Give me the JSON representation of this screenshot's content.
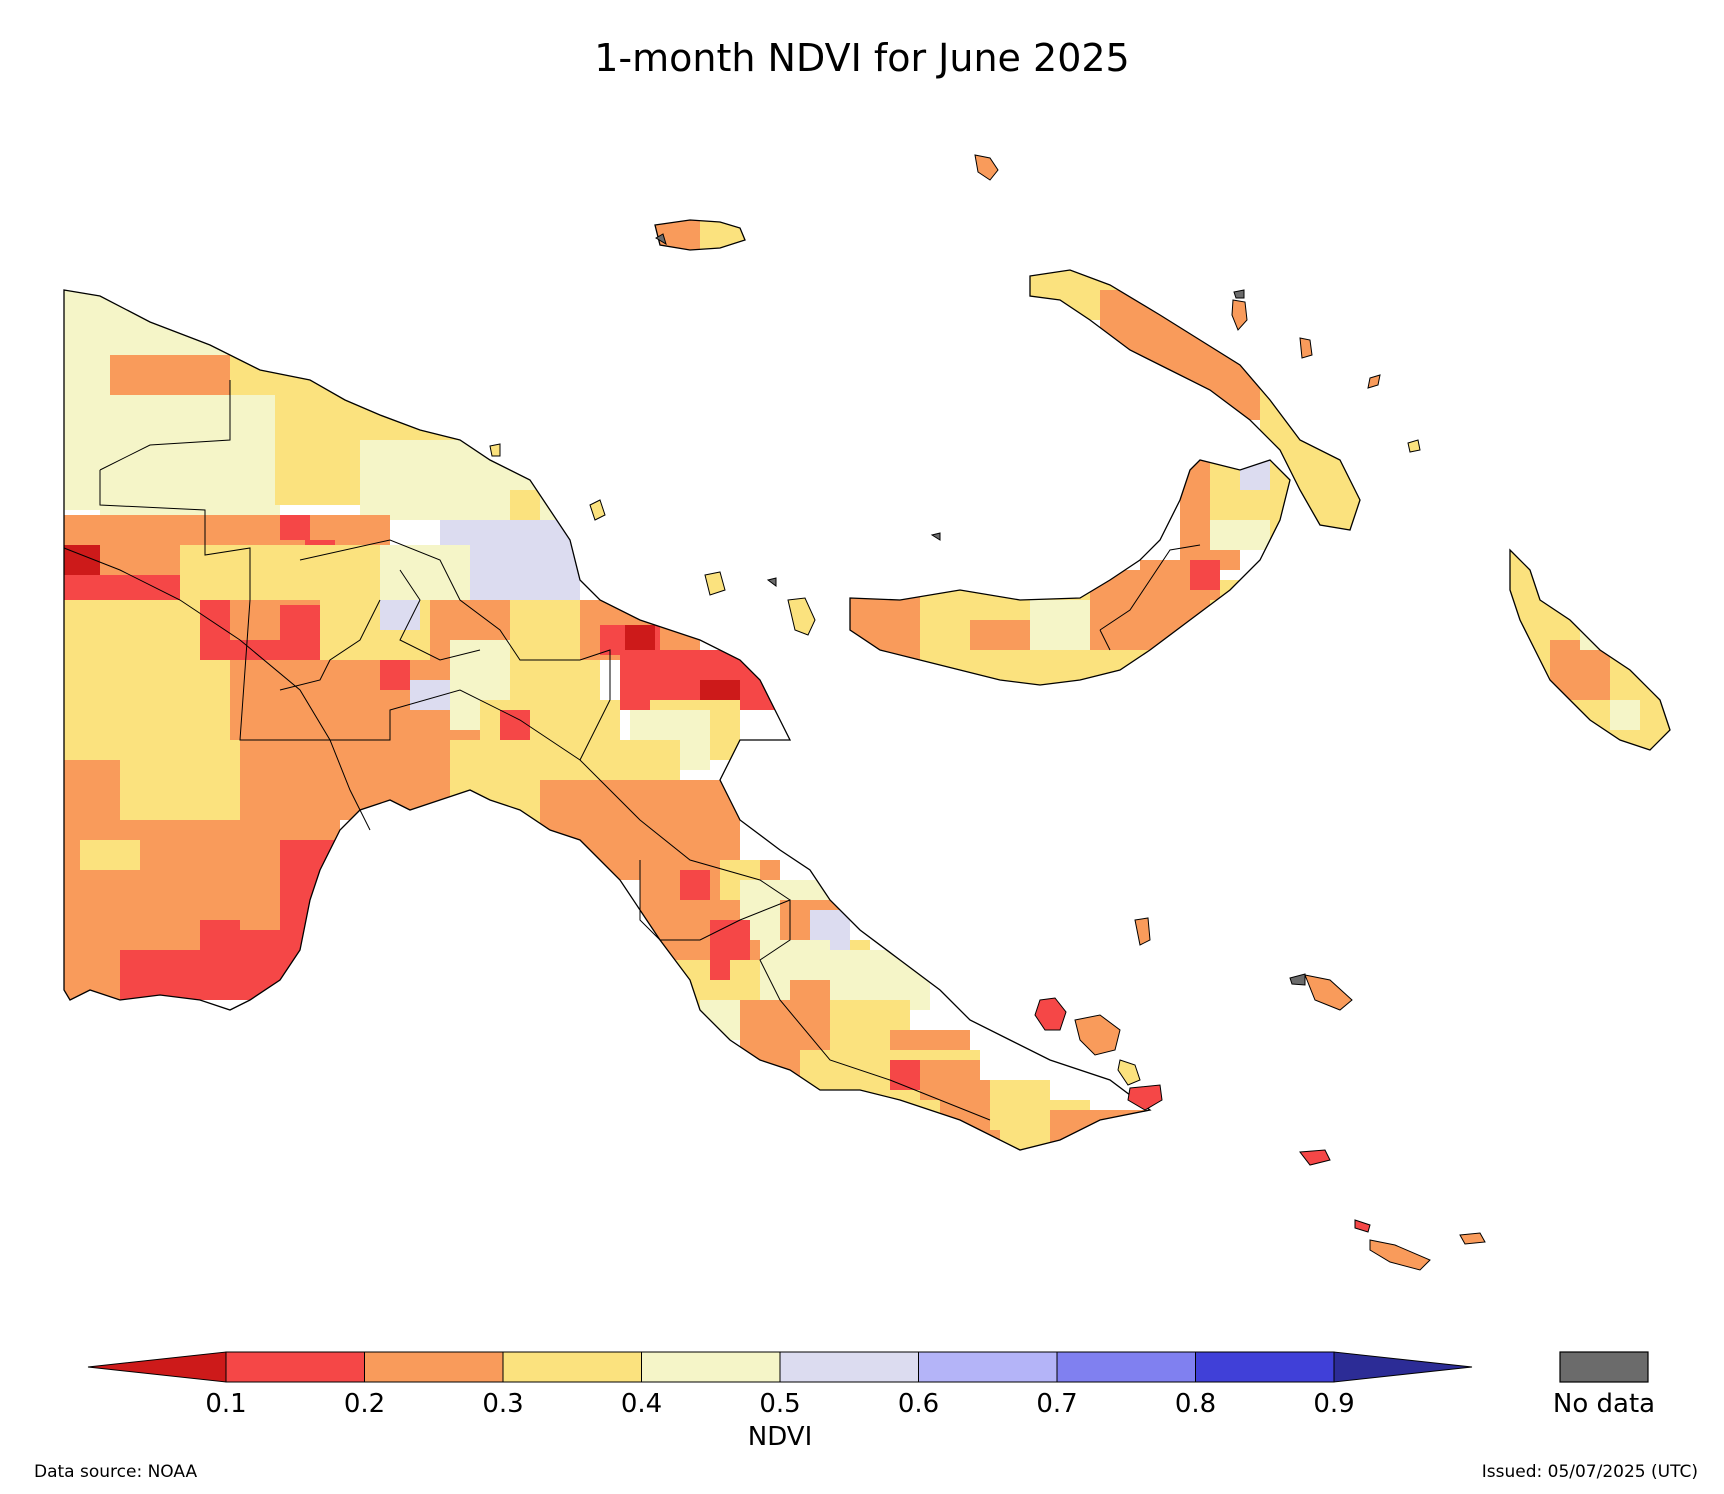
{
  "title": "1-month NDVI for June 2025",
  "source": "Data source: NOAA",
  "issued": "Issued: 05/07/2025 (UTC)",
  "legend": {
    "label": "NDVI",
    "ticks": [
      "0.1",
      "0.2",
      "0.3",
      "0.4",
      "0.5",
      "0.6",
      "0.7",
      "0.8",
      "0.9"
    ],
    "under_color": "#cd1a1a",
    "over_color": "#2c2c96",
    "colors": [
      "#f54747",
      "#f99b5b",
      "#fbe27e",
      "#f5f5c8",
      "#dcdcf0",
      "#b4b4f8",
      "#8080f0",
      "#4040d8"
    ],
    "nodata_label": "No data",
    "nodata_color": "#6b6b6b"
  }
}
